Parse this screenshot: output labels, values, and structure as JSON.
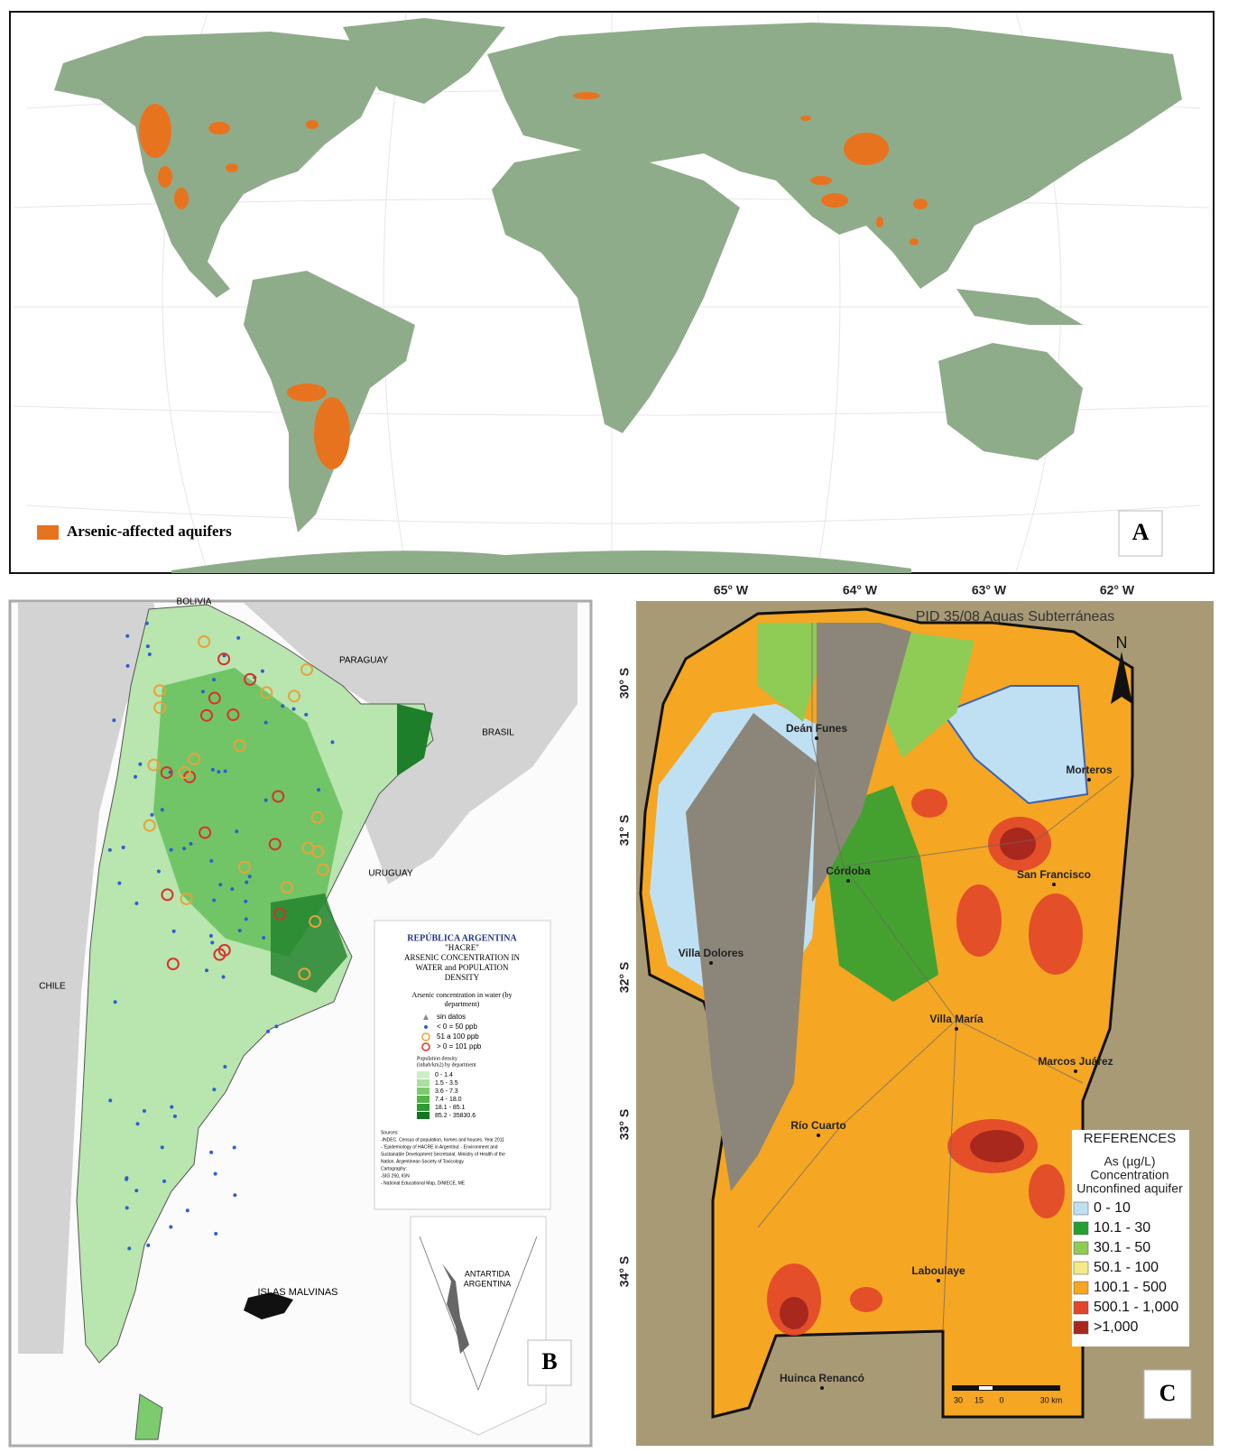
{
  "panel_a": {
    "legend_label": "Arsenic-affected aquifers",
    "legend_color": "#e8731e",
    "panel_letter": "A"
  },
  "panel_b": {
    "countries": [
      "BOLIVIA",
      "PARAGUAY",
      "BRASIL",
      "URUGUAY",
      "CHILE"
    ],
    "islands": "ISLAS MALVINAS",
    "antarctica": [
      "ANTARTIDA",
      "ARGENTINA"
    ],
    "legend": {
      "title": "REPÚBLICA ARGENTINA",
      "subtitle": "\"HACRE\"",
      "heading": [
        "ARSENIC CONCENTRATION IN",
        "WATER and POPULATION",
        "DENSITY"
      ],
      "arsenic_title": [
        "Arsenic concentration in water (by",
        "department)"
      ],
      "arsenic_items": [
        {
          "label": "sin datos",
          "color": "#888888",
          "shape": "triangle"
        },
        {
          "label": "< 0 = 50 ppb",
          "color": "#2c5fd0",
          "shape": "dot"
        },
        {
          "label": "51 a 100 ppb",
          "color": "#e8a23a",
          "shape": "ring"
        },
        {
          "label": "> 0 = 101 ppb",
          "color": "#d8322c",
          "shape": "ring"
        }
      ],
      "density_title": [
        "Population density",
        "(inhab/km2) by department"
      ],
      "density_items": [
        {
          "label": "0 - 1.4",
          "color": "#cdeec5"
        },
        {
          "label": "1.5 - 3.5",
          "color": "#a9e09e"
        },
        {
          "label": "3.6 - 7.3",
          "color": "#7ccc6e"
        },
        {
          "label": "7.4 - 18.0",
          "color": "#52b547"
        },
        {
          "label": "18.1 - 85.1",
          "color": "#2f9a32"
        },
        {
          "label": "85.2 - 35830.6",
          "color": "#147524"
        }
      ],
      "sources": [
        "Sources:",
        "-INDEC. Census of population, homes and houses. Year 2011",
        "- 'Epidemiology of HACRE in Argentina' - Environment and",
        "Sustainable Development Secretariat. Ministry of Health of the",
        "Nation. Argentinean Society of Toxicology",
        "Cartography:",
        "-SIG 250, IGN",
        "- National Educational Map, DiNIECE, ME"
      ]
    },
    "panel_letter": "B"
  },
  "panel_c": {
    "longitudes": [
      "65° W",
      "64° W",
      "63° W",
      "62° W"
    ],
    "latitudes": [
      "30° S",
      "31° S",
      "32° S",
      "33° S",
      "34° S"
    ],
    "project": "PID 35/08 Aguas Subterráneas",
    "north": "N",
    "cities": [
      "Deán Funes",
      "Morteros",
      "Córdoba",
      "San Francisco",
      "Villa Dolores",
      "Villa María",
      "Marcos Juárez",
      "Río Cuarto",
      "Laboulaye",
      "Huinca Renancó"
    ],
    "scale": [
      "30",
      "15",
      "0",
      "30 km"
    ],
    "legend": {
      "title": "REFERENCES",
      "subtitle": [
        "As (µg/L)",
        "Concentration",
        "Unconfined aquifer"
      ],
      "items": [
        {
          "label": "0 - 10",
          "color": "#bfe0f3"
        },
        {
          "label": "10.1 - 30",
          "color": "#24a033"
        },
        {
          "label": "30.1 - 50",
          "color": "#8fcc56"
        },
        {
          "label": "50.1 - 100",
          "color": "#f4ea86"
        },
        {
          "label": "100.1 - 500",
          "color": "#f5a623"
        },
        {
          "label": "500.1 - 1,000",
          "color": "#e2462a"
        },
        {
          "label": ">1,000",
          "color": "#a8281e"
        }
      ]
    },
    "panel_letter": "C"
  }
}
